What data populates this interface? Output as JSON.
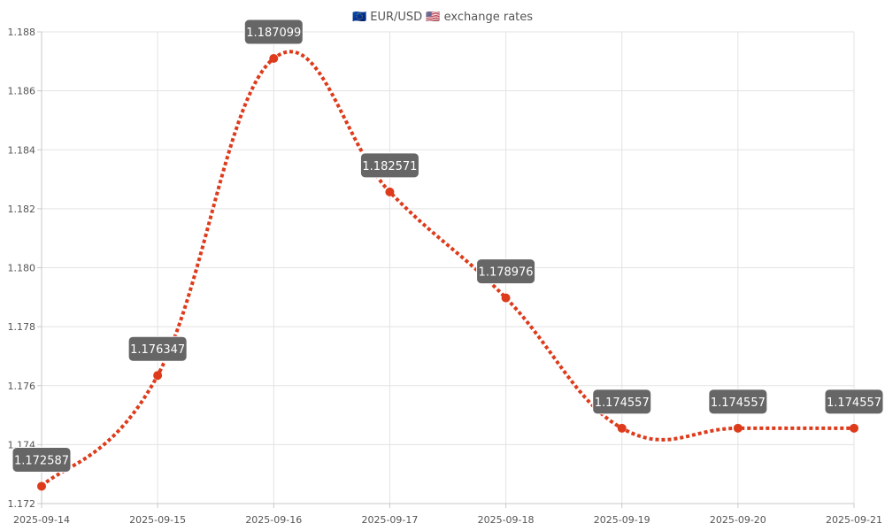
{
  "chart_data": {
    "type": "line",
    "title": "🇪🇺 EUR/USD 🇺🇸 exchange rates",
    "x": [
      "2025-09-14",
      "2025-09-15",
      "2025-09-16",
      "2025-09-17",
      "2025-09-18",
      "2025-09-19",
      "2025-09-20",
      "2025-09-21"
    ],
    "y_ticks": [
      "1.172",
      "1.174",
      "1.176",
      "1.178",
      "1.180",
      "1.182",
      "1.184",
      "1.186",
      "1.188"
    ],
    "series": [
      {
        "values": [
          1.172587,
          1.176347,
          1.187099,
          1.182571,
          1.178976,
          1.174557,
          1.174557,
          1.174557
        ],
        "labels": [
          "1.172587",
          "1.176347",
          "1.187099",
          "1.182571",
          "1.178976",
          "1.174557",
          "1.174557",
          "1.174557"
        ]
      }
    ],
    "ylim": [
      1.172,
      1.188
    ],
    "grid": true,
    "line_style": "dotted, smoothed",
    "colors": {
      "line": "#dd3b1b",
      "point": "#dd3b1b",
      "label_bg": "#666666",
      "label_text": "#ffffff"
    }
  }
}
